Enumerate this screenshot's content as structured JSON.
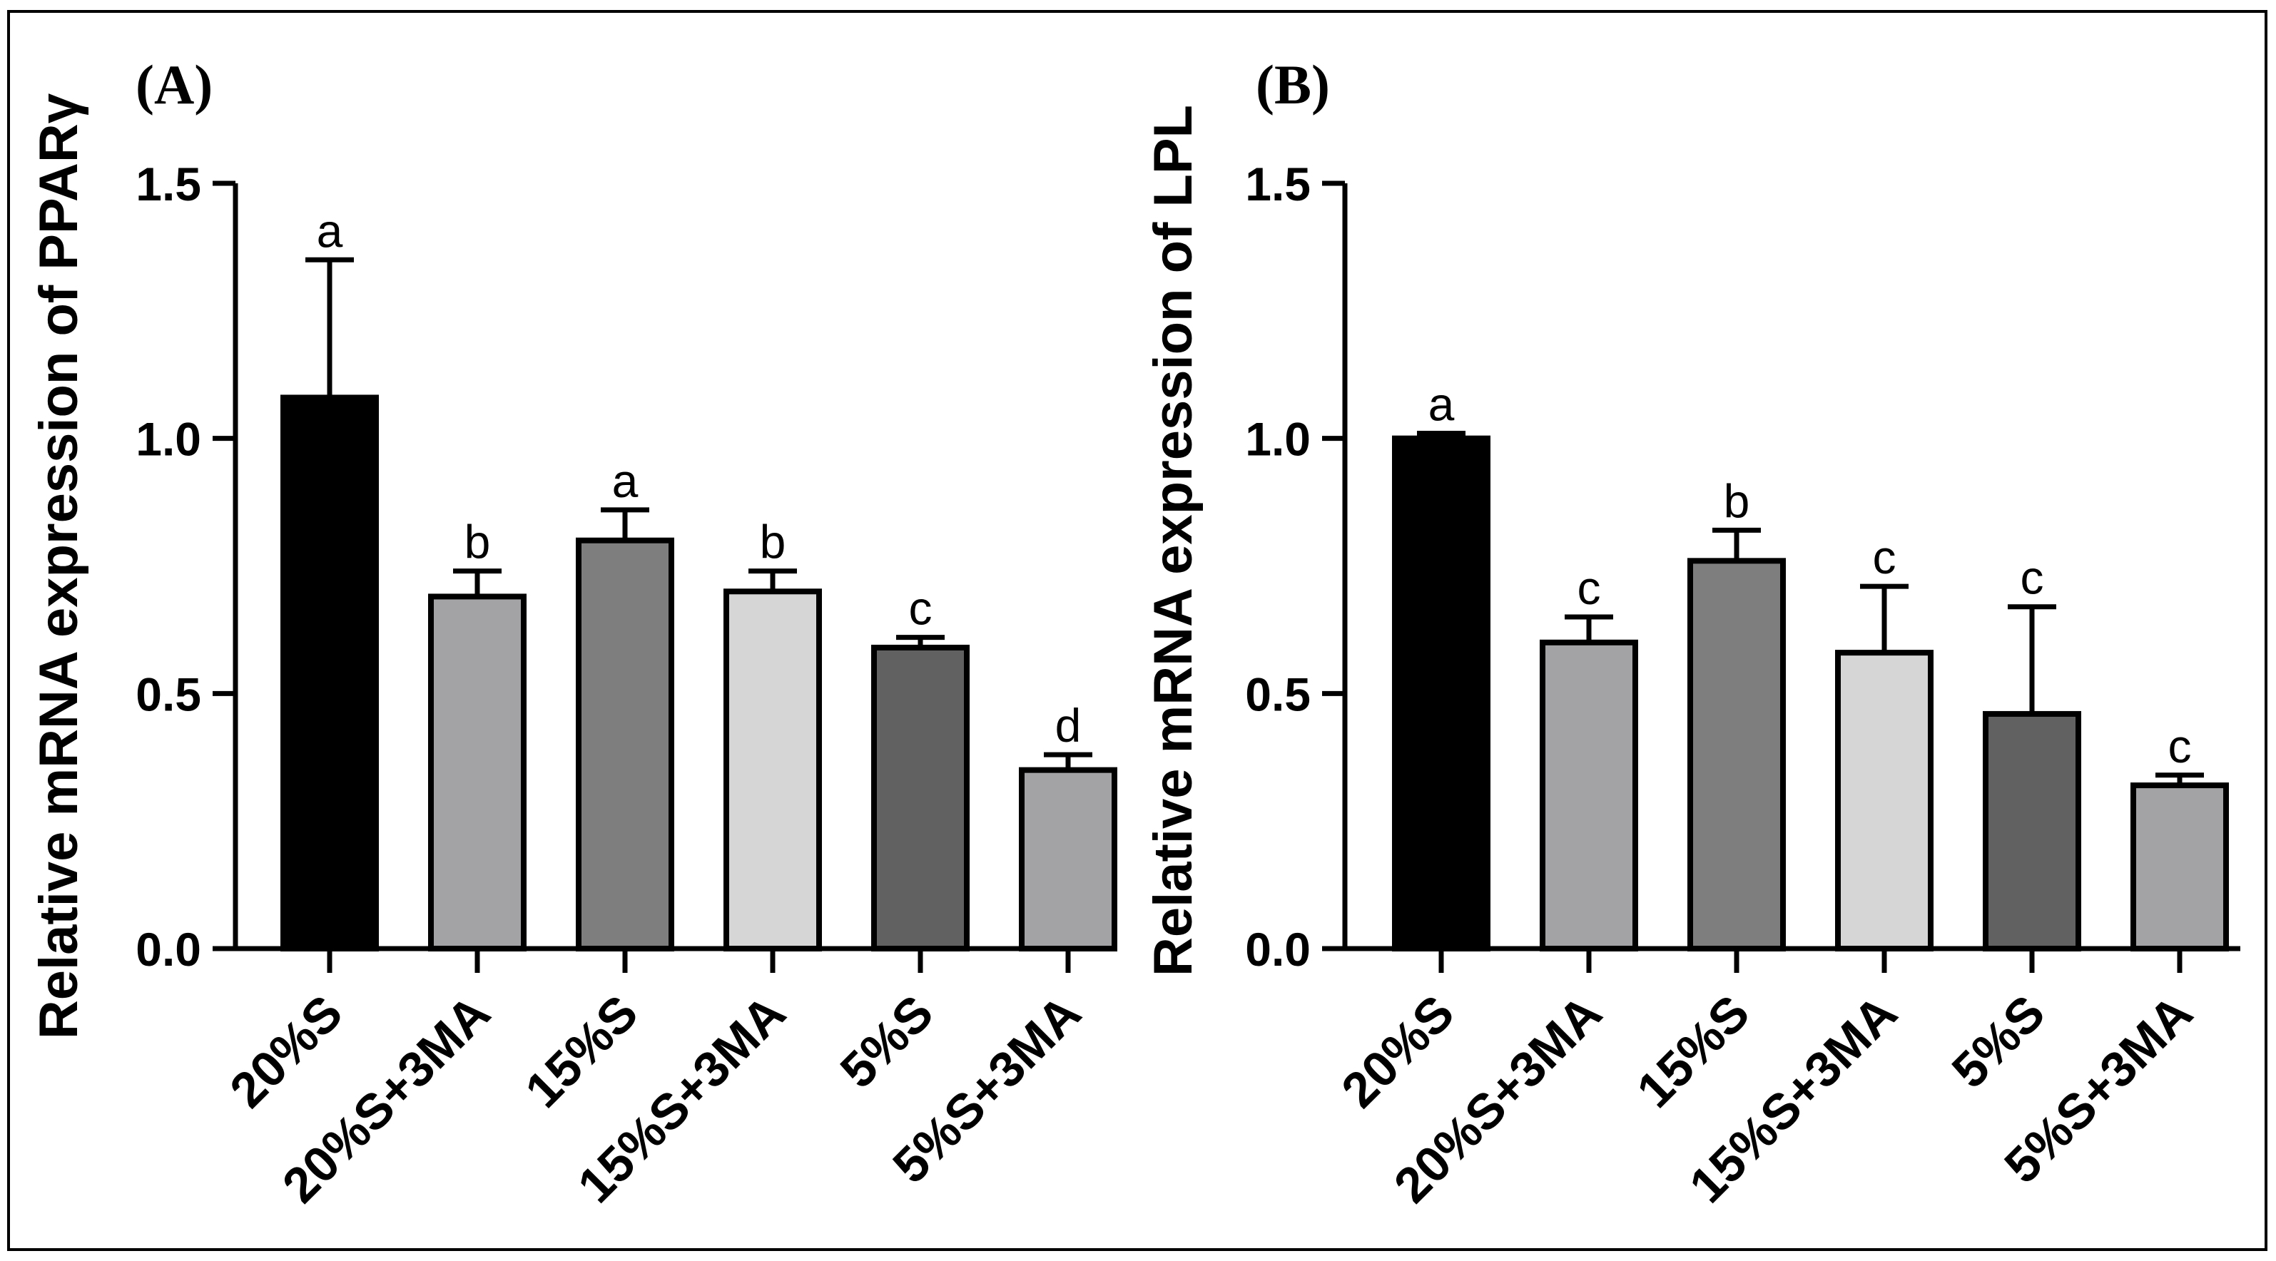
{
  "chart_data": [
    {
      "type": "bar",
      "panel_label": "(A)",
      "ylabel": "Relative mRNA expression of PPARγ",
      "xlabel": "",
      "ylim": [
        0,
        1.5
      ],
      "yticks": [
        0.0,
        0.5,
        1.0,
        1.5
      ],
      "ytick_labels": [
        "0.0",
        "0.5",
        "1.0",
        "1.5"
      ],
      "categories": [
        "20%S",
        "20%S+3MA",
        "15%S",
        "15%S+3MA",
        "5%S",
        "5%S+3MA"
      ],
      "values": [
        1.08,
        0.69,
        0.8,
        0.7,
        0.59,
        0.35
      ],
      "errors": [
        0.27,
        0.05,
        0.06,
        0.04,
        0.02,
        0.03
      ],
      "significance": [
        "a",
        "b",
        "a",
        "b",
        "c",
        "d"
      ],
      "bar_colors": [
        "#000000",
        "#a3a3a6",
        "#7e7e7e",
        "#d6d6d6",
        "#616161",
        "#a3a3a6"
      ]
    },
    {
      "type": "bar",
      "panel_label": "(B)",
      "ylabel": "Relative mRNA expression of LPL",
      "xlabel": "",
      "ylim": [
        0,
        1.5
      ],
      "yticks": [
        0.0,
        0.5,
        1.0,
        1.5
      ],
      "ytick_labels": [
        "0.0",
        "0.5",
        "1.0",
        "1.5"
      ],
      "categories": [
        "20%S",
        "20%S+3MA",
        "15%S",
        "15%S+3MA",
        "5%S",
        "5%S+3MA"
      ],
      "values": [
        1.0,
        0.6,
        0.76,
        0.58,
        0.46,
        0.32
      ],
      "errors": [
        0.01,
        0.05,
        0.06,
        0.13,
        0.21,
        0.02
      ],
      "significance": [
        "a",
        "c",
        "b",
        "c",
        "c",
        "c"
      ],
      "bar_colors": [
        "#000000",
        "#a3a3a6",
        "#7e7e7e",
        "#d6d6d6",
        "#616161",
        "#a3a3a6"
      ]
    }
  ]
}
